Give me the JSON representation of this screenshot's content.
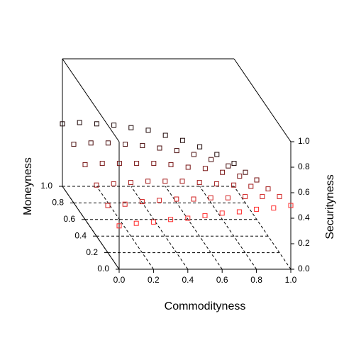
{
  "chart_data": {
    "type": "scatter3d",
    "x_label": "Commodityness",
    "y_label": "Moneyness",
    "z_label": "Securityness",
    "xlim": [
      0,
      1
    ],
    "ylim": [
      0,
      1
    ],
    "zlim": [
      0,
      1
    ],
    "xticks": [
      {
        "value": 0,
        "label": "0.0"
      },
      {
        "value": 0.2,
        "label": "0.2"
      },
      {
        "value": 0.4,
        "label": "0.4"
      },
      {
        "value": 0.6,
        "label": "0.6"
      },
      {
        "value": 0.8,
        "label": "0.8"
      },
      {
        "value": 1,
        "label": "1.0"
      }
    ],
    "yticks": [
      {
        "value": 0,
        "label": "0.0"
      },
      {
        "value": 0.2,
        "label": "0.2"
      },
      {
        "value": 0.4,
        "label": "0.4"
      },
      {
        "value": 0.6,
        "label": "0.6"
      },
      {
        "value": 0.8,
        "label": "0.8"
      },
      {
        "value": 1,
        "label": "1.0"
      }
    ],
    "zticks": [
      {
        "value": 0,
        "label": "0.0"
      },
      {
        "value": 0.2,
        "label": "0.2"
      },
      {
        "value": 0.4,
        "label": "0.4"
      },
      {
        "value": 0.6,
        "label": "0.6"
      },
      {
        "value": 0.8,
        "label": "0.8"
      },
      {
        "value": 1,
        "label": "1.0"
      }
    ],
    "grid": true,
    "color_front": "#ff2a2a",
    "color_back": "#1c0404",
    "x": [
      0,
      0.1,
      0.2,
      0.3,
      0.4,
      0.5,
      0.6,
      0.7,
      0.8,
      0.9,
      1,
      0,
      0.1,
      0.2,
      0.3,
      0.4,
      0.5,
      0.6,
      0.7,
      0.8,
      0.9,
      1,
      0,
      0.1,
      0.2,
      0.3,
      0.4,
      0.5,
      0.6,
      0.7,
      0.8,
      0.9,
      1,
      0,
      0.1,
      0.2,
      0.3,
      0.4,
      0.5,
      0.6,
      0.7,
      0.8,
      0.9,
      1,
      0,
      0.1,
      0.2,
      0.3,
      0.4,
      0.5,
      0.6,
      0.7,
      0.8,
      0.9,
      1,
      0,
      0.1,
      0.2,
      0.3,
      0.4,
      0.5,
      0.6,
      0.7,
      0.8,
      0.9,
      1
    ],
    "y": [
      1,
      1,
      1,
      1,
      1,
      1,
      1,
      1,
      1,
      1,
      1,
      0.8,
      0.8,
      0.8,
      0.8,
      0.8,
      0.8,
      0.8,
      0.8,
      0.8,
      0.8,
      0.8,
      0.6,
      0.6,
      0.6,
      0.6,
      0.6,
      0.6,
      0.6,
      0.6,
      0.6,
      0.6,
      0.6,
      0.4,
      0.4,
      0.4,
      0.4,
      0.4,
      0.4,
      0.4,
      0.4,
      0.4,
      0.4,
      0.4,
      0.2,
      0.2,
      0.2,
      0.2,
      0.2,
      0.2,
      0.2,
      0.2,
      0.2,
      0.2,
      0.2,
      0,
      0,
      0,
      0,
      0,
      0,
      0,
      0,
      0,
      0,
      0
    ],
    "z": [
      0.49,
      0.5,
      0.49,
      0.48,
      0.46,
      0.44,
      0.4,
      0.36,
      0.31,
      0.25,
      0.18,
      0.46,
      0.47,
      0.47,
      0.46,
      0.45,
      0.43,
      0.41,
      0.38,
      0.34,
      0.29,
      0.24,
      0.43,
      0.44,
      0.44,
      0.44,
      0.44,
      0.43,
      0.41,
      0.4,
      0.37,
      0.34,
      0.31,
      0.4,
      0.41,
      0.42,
      0.43,
      0.43,
      0.43,
      0.42,
      0.41,
      0.4,
      0.39,
      0.37,
      0.37,
      0.38,
      0.4,
      0.41,
      0.42,
      0.42,
      0.43,
      0.43,
      0.44,
      0.44,
      0.44,
      0.34,
      0.36,
      0.37,
      0.39,
      0.4,
      0.42,
      0.44,
      0.45,
      0.47,
      0.48,
      0.5
    ]
  }
}
